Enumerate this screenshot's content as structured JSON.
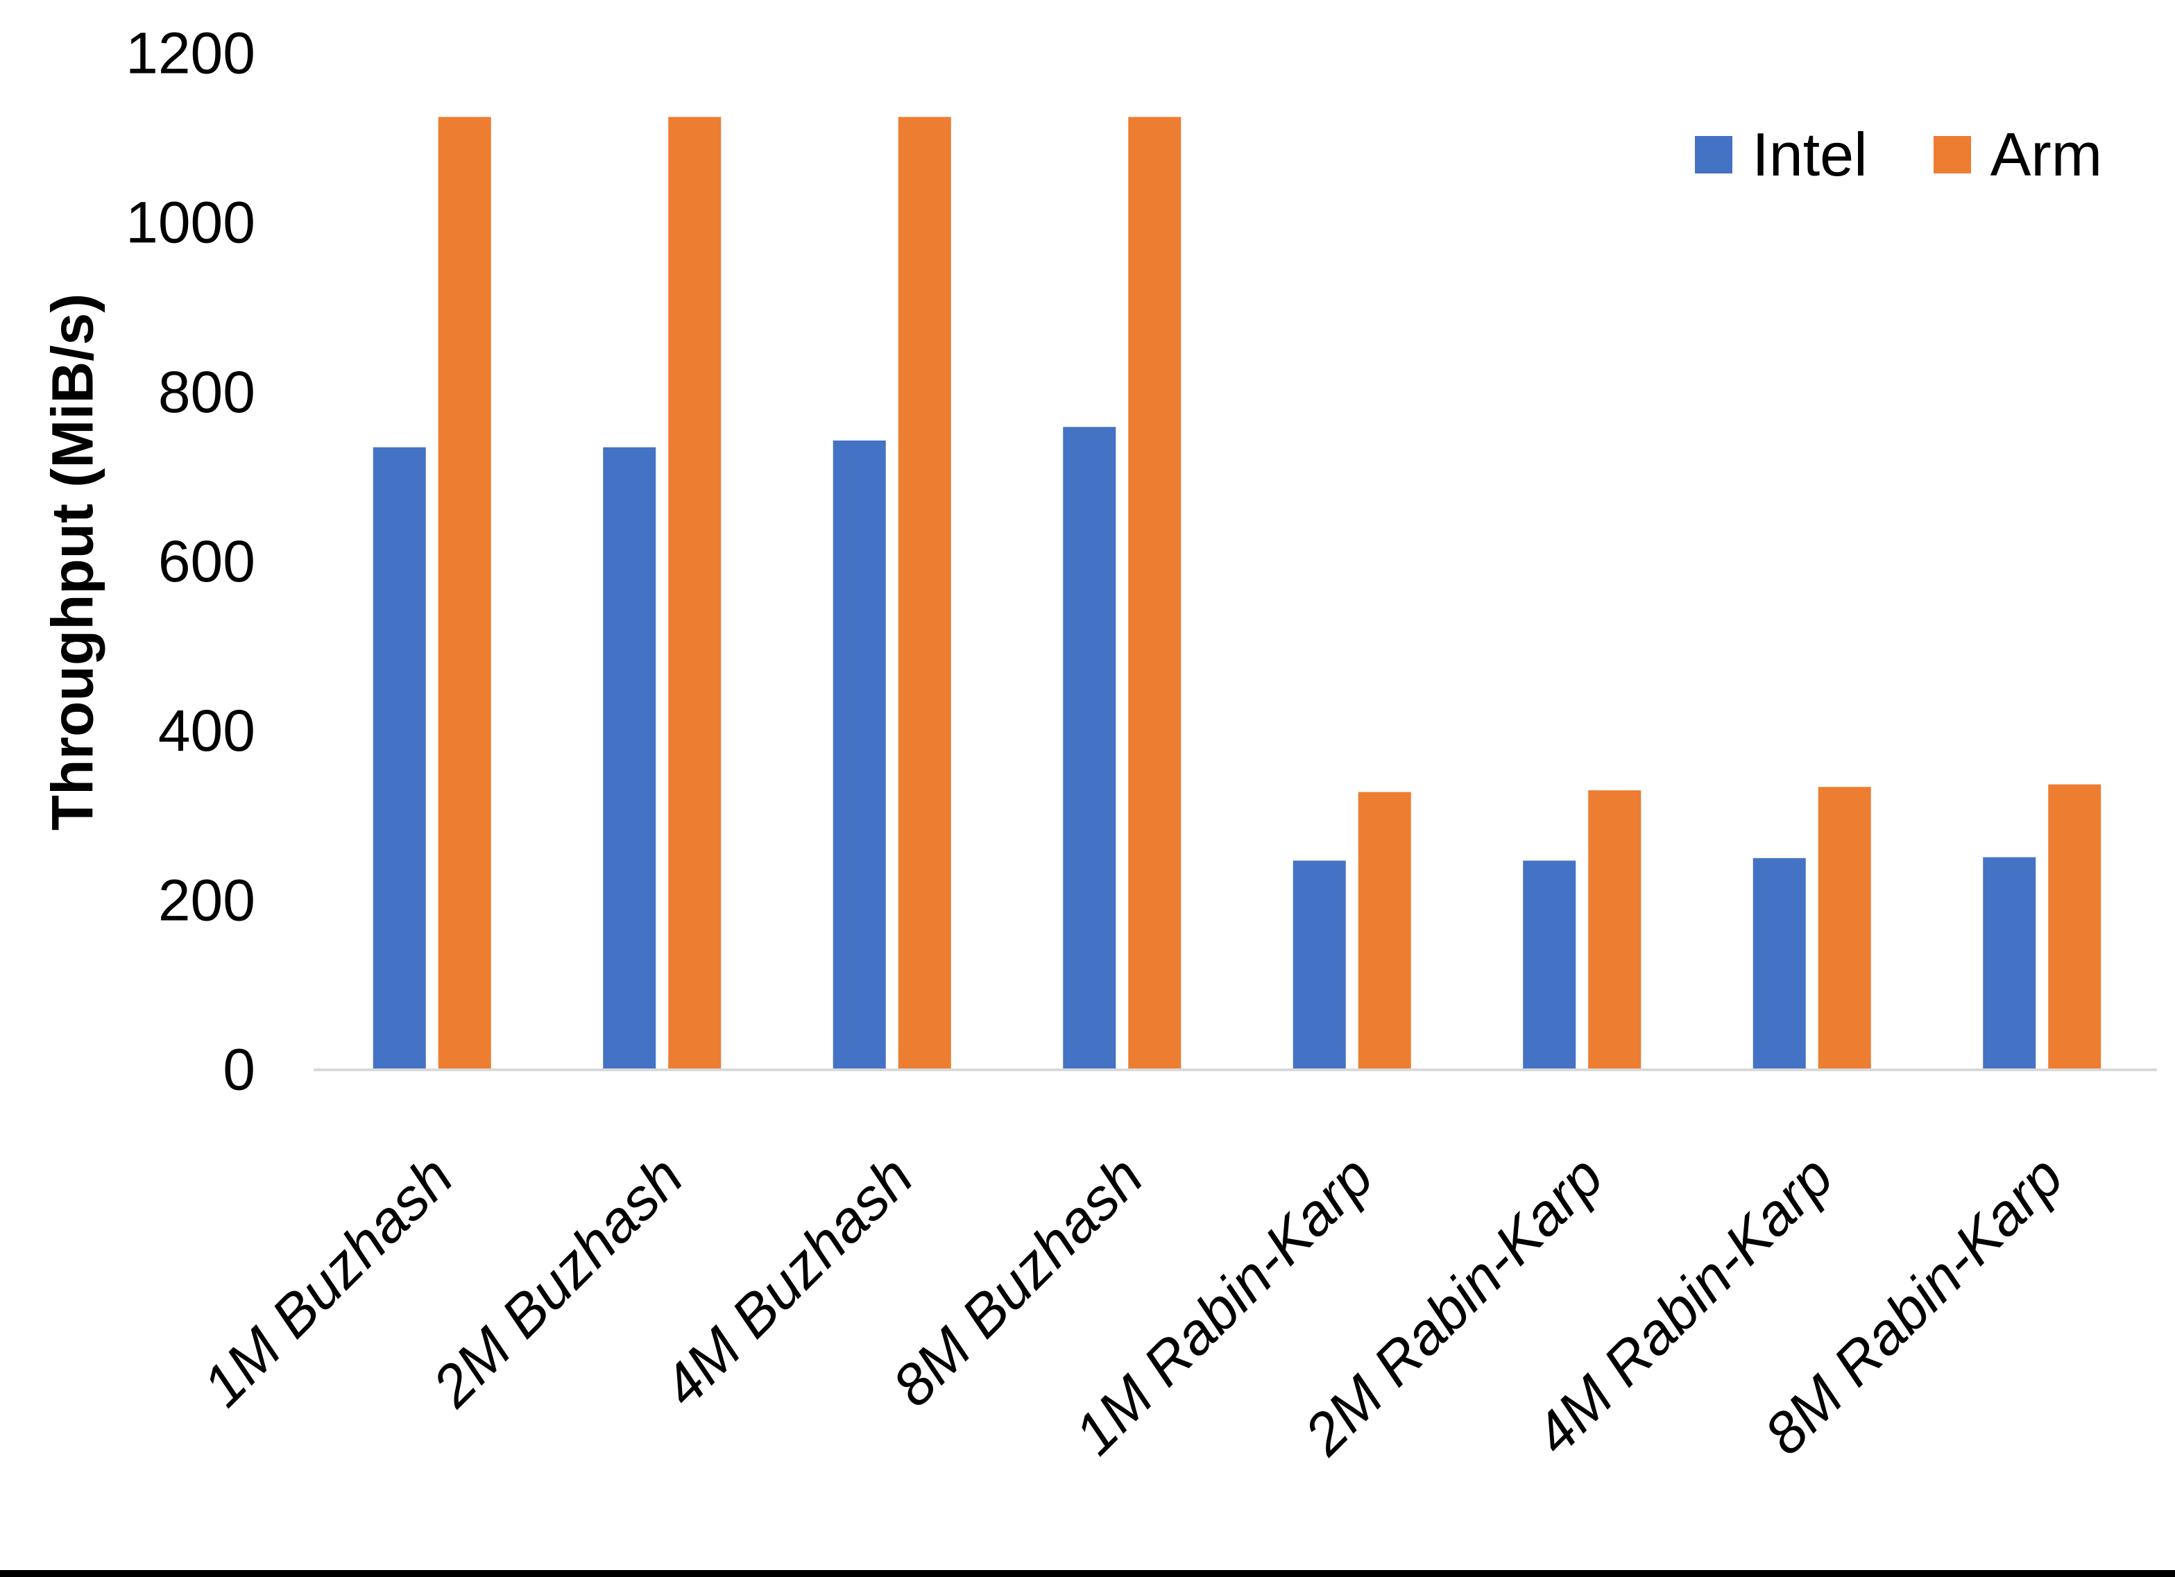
{
  "chart_data": {
    "type": "bar",
    "title": "",
    "xlabel": "",
    "ylabel": "Throughput (MiB/s)",
    "ylim": [
      0,
      1200
    ],
    "yticks": [
      0,
      200,
      400,
      600,
      800,
      1000,
      1200
    ],
    "grid": false,
    "legend_position": "top-right",
    "axis_line_color": "#D9D9D9",
    "categories": [
      "1M Buzhash",
      "2M Buzhash",
      "4M Buzhash",
      "8M Buzhash",
      "1M Rabin-Karp",
      "2M Rabin-Karp",
      "4M Rabin-Karp",
      "8M Rabin-Karp"
    ],
    "series": [
      {
        "name": "Intel",
        "color": "#4472C4",
        "values": [
          735,
          735,
          743,
          759,
          247,
          247,
          250,
          251
        ]
      },
      {
        "name": "Arm",
        "color": "#ED7D31",
        "values": [
          1125,
          1125,
          1125,
          1125,
          328,
          330,
          334,
          337
        ]
      }
    ]
  },
  "page": {
    "bottom_bar_color": "#000000",
    "background_color": "#FFFFFF",
    "text_color": "#000000"
  }
}
